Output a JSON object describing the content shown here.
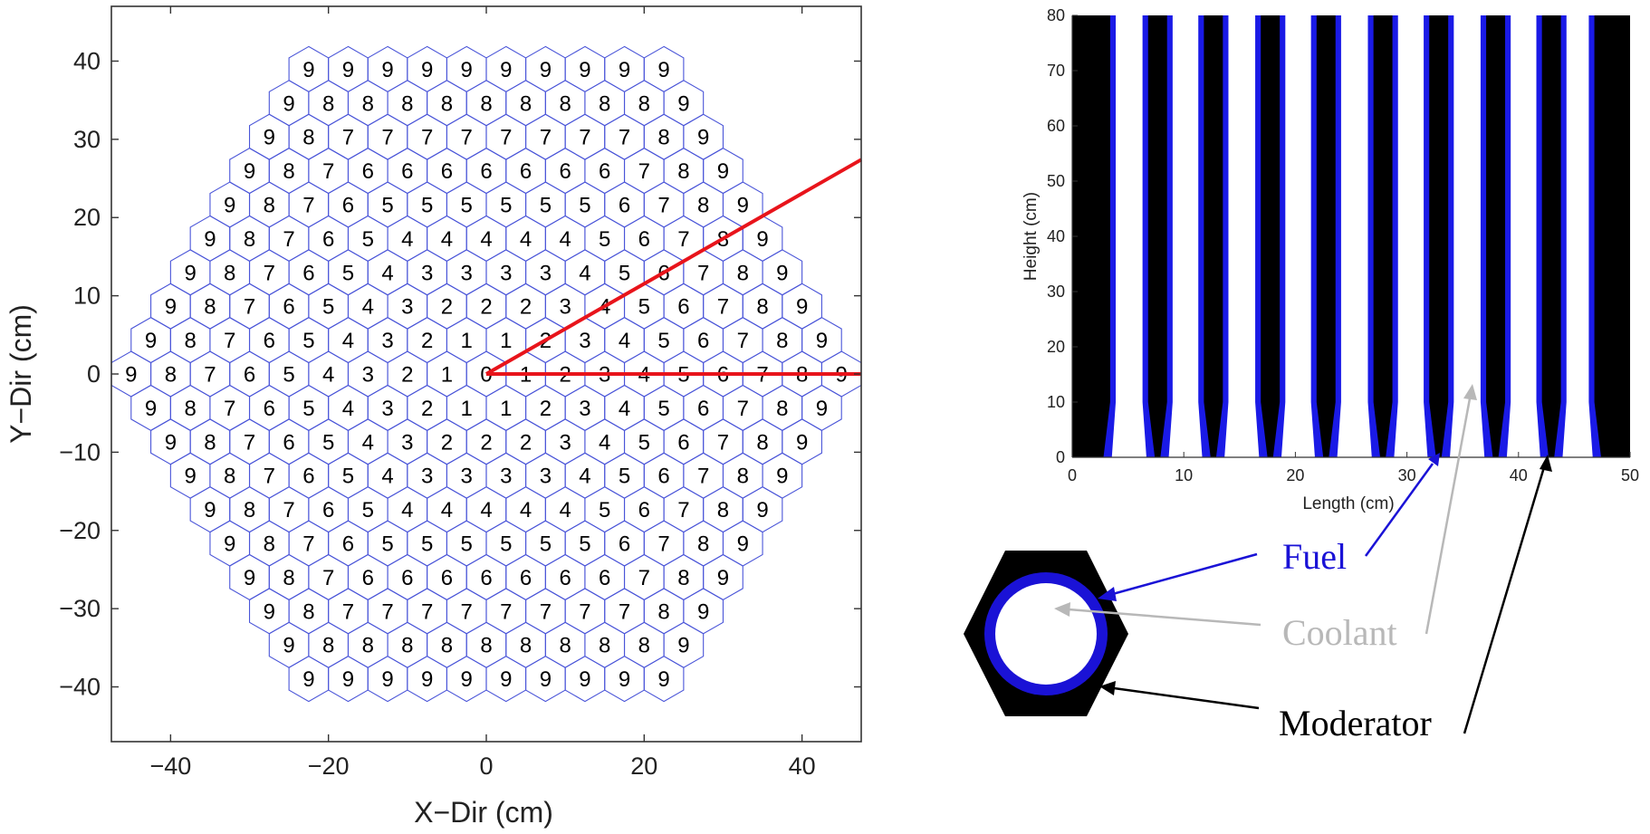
{
  "hex_map": {
    "xlabel": "X−Dir (cm)",
    "ylabel": "Y−Dir (cm)",
    "xlim": [
      -47.5,
      47.5
    ],
    "ylim": [
      -47,
      47
    ],
    "xticks": [
      "−40",
      "−20",
      "0",
      "20",
      "40"
    ],
    "xtick_values": [
      -40,
      -20,
      0,
      20,
      40
    ],
    "yticks": [
      "40",
      "30",
      "20",
      "10",
      "0",
      "−10",
      "−20",
      "−30",
      "−40"
    ],
    "ytick_values": [
      40,
      30,
      20,
      10,
      0,
      -10,
      -20,
      -30,
      -40
    ],
    "rings": 10,
    "pitch_cm": 5,
    "hex_edge_color": "#4a55d8",
    "ring_label_color": "#000000",
    "sector_lines": [
      {
        "from": [
          0,
          0
        ],
        "to": [
          47.5,
          0
        ],
        "color": "#e8141b"
      },
      {
        "from": [
          0,
          0
        ],
        "to": [
          47.5,
          27.4
        ],
        "color": "#e8141b"
      }
    ]
  },
  "axial_plot": {
    "xlabel": "Length (cm)",
    "ylabel": "Height (cm)",
    "xlim": [
      0,
      50
    ],
    "ylim": [
      0,
      80
    ],
    "xticks": [
      "0",
      "10",
      "20",
      "30",
      "40",
      "50"
    ],
    "xtick_values": [
      0,
      10,
      20,
      30,
      40,
      50
    ],
    "yticks": [
      "80",
      "70",
      "60",
      "50",
      "40",
      "30",
      "20",
      "10",
      "0"
    ],
    "ytick_values": [
      80,
      70,
      60,
      50,
      40,
      30,
      20,
      10,
      0
    ],
    "coolant_channels": [
      {
        "blue_left": 3.4,
        "white_left": 3.9,
        "white_right": 6.3,
        "blue_right": 6.8
      },
      {
        "blue_left": 8.5,
        "white_left": 9.0,
        "white_right": 11.3,
        "blue_right": 11.8
      },
      {
        "blue_left": 13.5,
        "white_left": 14.0,
        "white_right": 16.4,
        "blue_right": 16.9
      },
      {
        "blue_left": 18.6,
        "white_left": 19.1,
        "white_right": 21.4,
        "blue_right": 21.9
      },
      {
        "blue_left": 23.6,
        "white_left": 24.1,
        "white_right": 26.5,
        "blue_right": 27.0
      },
      {
        "blue_left": 28.7,
        "white_left": 29.2,
        "white_right": 31.5,
        "blue_right": 32.0
      },
      {
        "blue_left": 33.7,
        "white_left": 34.2,
        "white_right": 36.6,
        "blue_right": 37.1
      },
      {
        "blue_left": 38.8,
        "white_left": 39.3,
        "white_right": 41.6,
        "blue_right": 42.1
      },
      {
        "blue_left": 43.8,
        "white_left": 44.3,
        "white_right": 46.3,
        "blue_right": 46.8
      }
    ],
    "taper_height": 10,
    "moderator_color": "#000000",
    "fuel_color": "#1a1ae6",
    "coolant_color": "#ffffff"
  },
  "legend": {
    "fuel_label": "Fuel",
    "coolant_label": "Coolant",
    "moderator_label": "Moderator",
    "fuel_color": "#1a12d6",
    "coolant_color": "#b8b8b8",
    "moderator_color": "#000000"
  }
}
